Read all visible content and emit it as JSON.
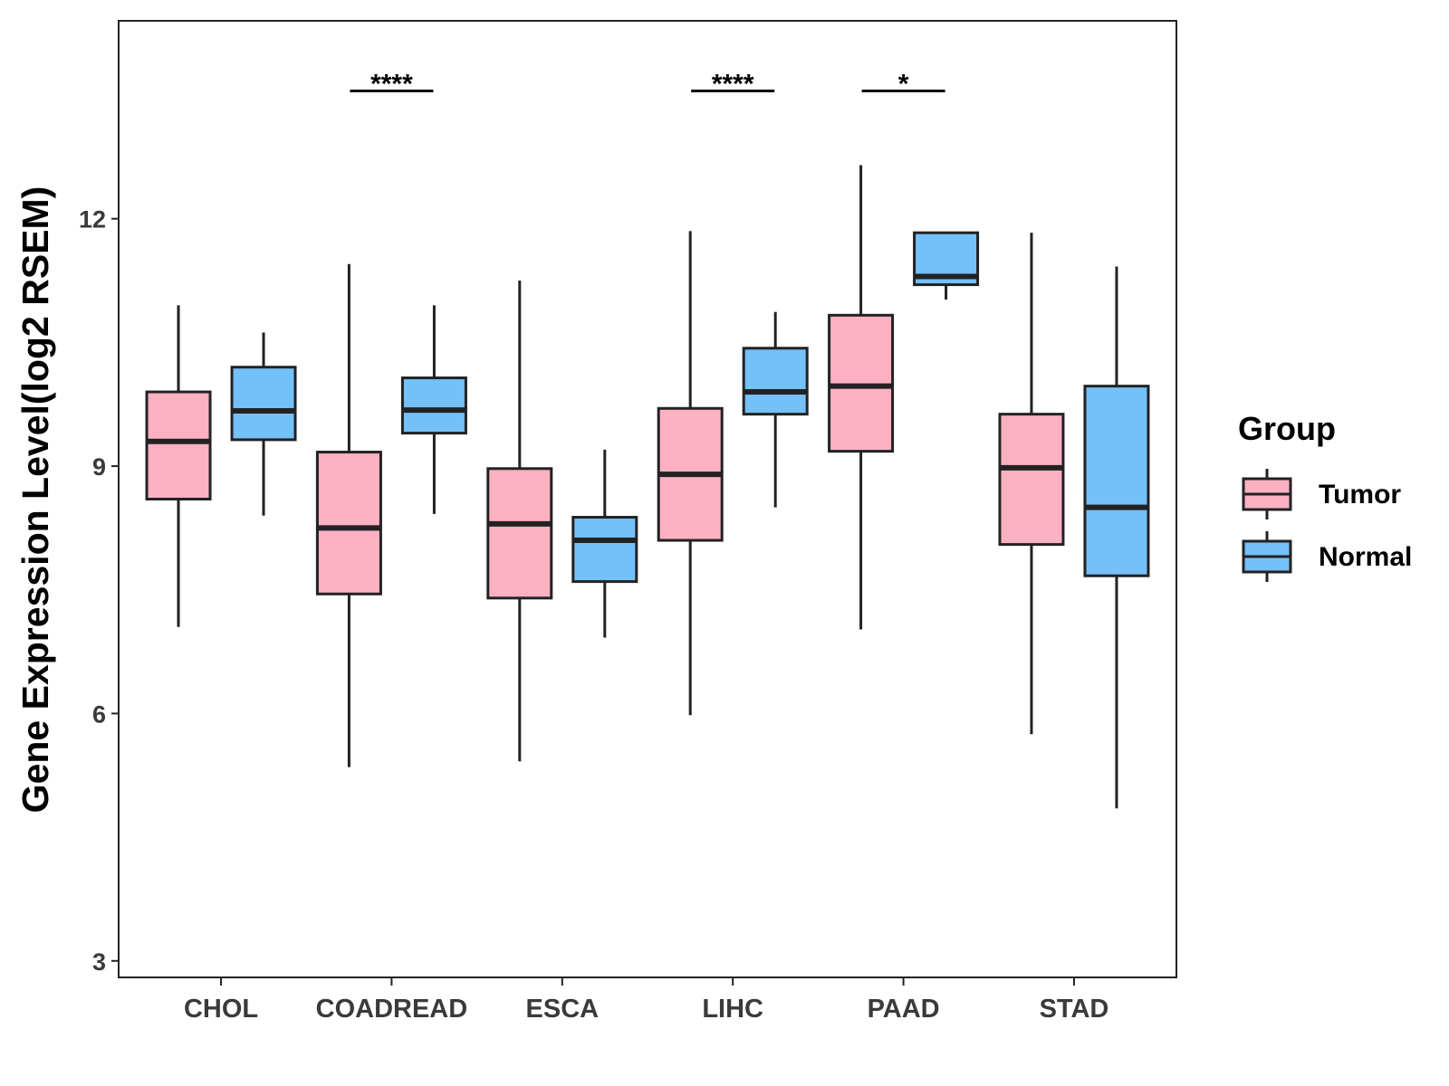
{
  "chart_data": {
    "type": "boxplot",
    "title": "",
    "xlabel": "",
    "ylabel": "Gene Expression Level(log2 RSEM)",
    "ylim": [
      2.8,
      14.4
    ],
    "yticks": [
      3,
      6,
      9,
      12
    ],
    "grid": false,
    "legend_position": "right",
    "categories": [
      "CHOL",
      "COADREAD",
      "ESCA",
      "LIHC",
      "PAAD",
      "STAD"
    ],
    "legend": {
      "title": "Group",
      "entries": [
        "Tumor",
        "Normal"
      ]
    },
    "series": [
      {
        "name": "Tumor",
        "color": "#FCB1C3",
        "boxes": [
          {
            "category": "CHOL",
            "min": 7.05,
            "q1": 8.6,
            "median": 9.3,
            "q3": 9.9,
            "max": 10.95
          },
          {
            "category": "COADREAD",
            "min": 5.35,
            "q1": 7.45,
            "median": 8.25,
            "q3": 9.17,
            "max": 11.45
          },
          {
            "category": "ESCA",
            "min": 5.42,
            "q1": 7.4,
            "median": 8.3,
            "q3": 8.97,
            "max": 11.25
          },
          {
            "category": "LIHC",
            "min": 5.98,
            "q1": 8.1,
            "median": 8.9,
            "q3": 9.7,
            "max": 11.85
          },
          {
            "category": "PAAD",
            "min": 7.02,
            "q1": 9.18,
            "median": 9.97,
            "q3": 10.83,
            "max": 12.65
          },
          {
            "category": "STAD",
            "min": 5.75,
            "q1": 8.05,
            "median": 8.98,
            "q3": 9.63,
            "max": 11.83
          }
        ]
      },
      {
        "name": "Normal",
        "color": "#74C0F8",
        "boxes": [
          {
            "category": "CHOL",
            "min": 8.4,
            "q1": 9.32,
            "median": 9.67,
            "q3": 10.2,
            "max": 10.62
          },
          {
            "category": "COADREAD",
            "min": 8.42,
            "q1": 9.4,
            "median": 9.68,
            "q3": 10.07,
            "max": 10.95
          },
          {
            "category": "ESCA",
            "min": 6.92,
            "q1": 7.6,
            "median": 8.1,
            "q3": 8.38,
            "max": 9.2
          },
          {
            "category": "LIHC",
            "min": 8.5,
            "q1": 9.63,
            "median": 9.9,
            "q3": 10.43,
            "max": 10.87
          },
          {
            "category": "PAAD",
            "min": 11.02,
            "q1": 11.2,
            "median": 11.3,
            "q3": 11.83,
            "max": 11.83
          },
          {
            "category": "STAD",
            "min": 4.85,
            "q1": 7.67,
            "median": 8.5,
            "q3": 9.97,
            "max": 11.42
          }
        ]
      }
    ],
    "annotations": [
      {
        "category": "COADREAD",
        "label": "****",
        "y": 13.55
      },
      {
        "category": "LIHC",
        "label": "****",
        "y": 13.55
      },
      {
        "category": "PAAD",
        "label": "*",
        "y": 13.55
      }
    ]
  }
}
